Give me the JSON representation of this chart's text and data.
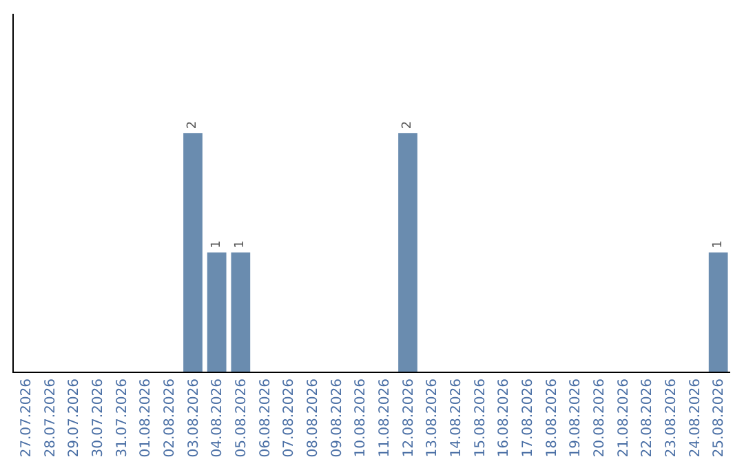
{
  "chart_data": {
    "type": "bar",
    "categories": [
      "27.07.2026",
      "28.07.2026",
      "29.07.2026",
      "30.07.2026",
      "31.07.2026",
      "01.08.2026",
      "02.08.2026",
      "03.08.2026",
      "04.08.2026",
      "05.08.2026",
      "06.08.2026",
      "07.08.2026",
      "08.08.2026",
      "09.08.2026",
      "10.08.2026",
      "11.08.2026",
      "12.08.2026",
      "13.08.2026",
      "14.08.2026",
      "15.08.2026",
      "16.08.2026",
      "17.08.2026",
      "18.08.2026",
      "19.08.2026",
      "20.08.2026",
      "21.08.2026",
      "22.08.2026",
      "23.08.2026",
      "24.08.2026",
      "25.08.2026"
    ],
    "values": [
      0,
      0,
      0,
      0,
      0,
      0,
      0,
      2,
      1,
      1,
      0,
      0,
      0,
      0,
      0,
      0,
      2,
      0,
      0,
      0,
      0,
      0,
      0,
      0,
      0,
      0,
      0,
      0,
      0,
      1
    ],
    "value_labels": [
      null,
      null,
      null,
      null,
      null,
      null,
      null,
      "2",
      "1",
      "1",
      null,
      null,
      null,
      null,
      null,
      null,
      "2",
      null,
      null,
      null,
      null,
      null,
      null,
      null,
      null,
      null,
      null,
      null,
      null,
      "1"
    ],
    "color": "#6a8caf",
    "ylim": [
      0,
      3
    ],
    "tick_labels": "x"
  }
}
